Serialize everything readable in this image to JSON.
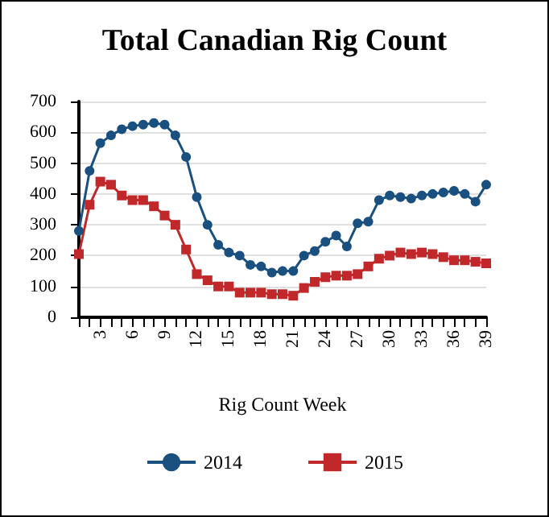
{
  "chart_data": {
    "type": "line",
    "title": "Total Canadian Rig Count",
    "xlabel": "Rig Count Week",
    "categories": [
      null,
      null,
      "3",
      null,
      null,
      "6",
      null,
      null,
      "9",
      null,
      null,
      "12",
      null,
      null,
      "15",
      null,
      null,
      "18",
      null,
      null,
      "21",
      null,
      null,
      "24",
      null,
      null,
      "27",
      null,
      null,
      "30",
      null,
      null,
      "33",
      null,
      null,
      "36",
      null,
      null,
      "39"
    ],
    "series": [
      {
        "name": "2014",
        "color": "#1a5080",
        "marker": "circle",
        "values": [
          280,
          475,
          565,
          590,
          610,
          620,
          625,
          630,
          625,
          590,
          520,
          390,
          300,
          235,
          210,
          200,
          170,
          165,
          145,
          150,
          150,
          200,
          215,
          245,
          265,
          230,
          305,
          310,
          380,
          395,
          390,
          385,
          395,
          400,
          405,
          410,
          400,
          375,
          430
        ]
      },
      {
        "name": "2015",
        "color": "#c0282a",
        "marker": "square",
        "values": [
          205,
          365,
          440,
          430,
          395,
          380,
          380,
          360,
          330,
          300,
          220,
          140,
          120,
          100,
          100,
          80,
          80,
          80,
          75,
          75,
          70,
          95,
          115,
          130,
          135,
          135,
          140,
          165,
          190,
          200,
          210,
          205,
          210,
          205,
          195,
          185,
          185,
          180,
          175
        ]
      }
    ],
    "ylim": [
      0,
      700
    ],
    "yticks": [
      0,
      100,
      200,
      300,
      400,
      500,
      600,
      700
    ],
    "grid": "y",
    "legend": "bottom",
    "line_style": "solid"
  }
}
